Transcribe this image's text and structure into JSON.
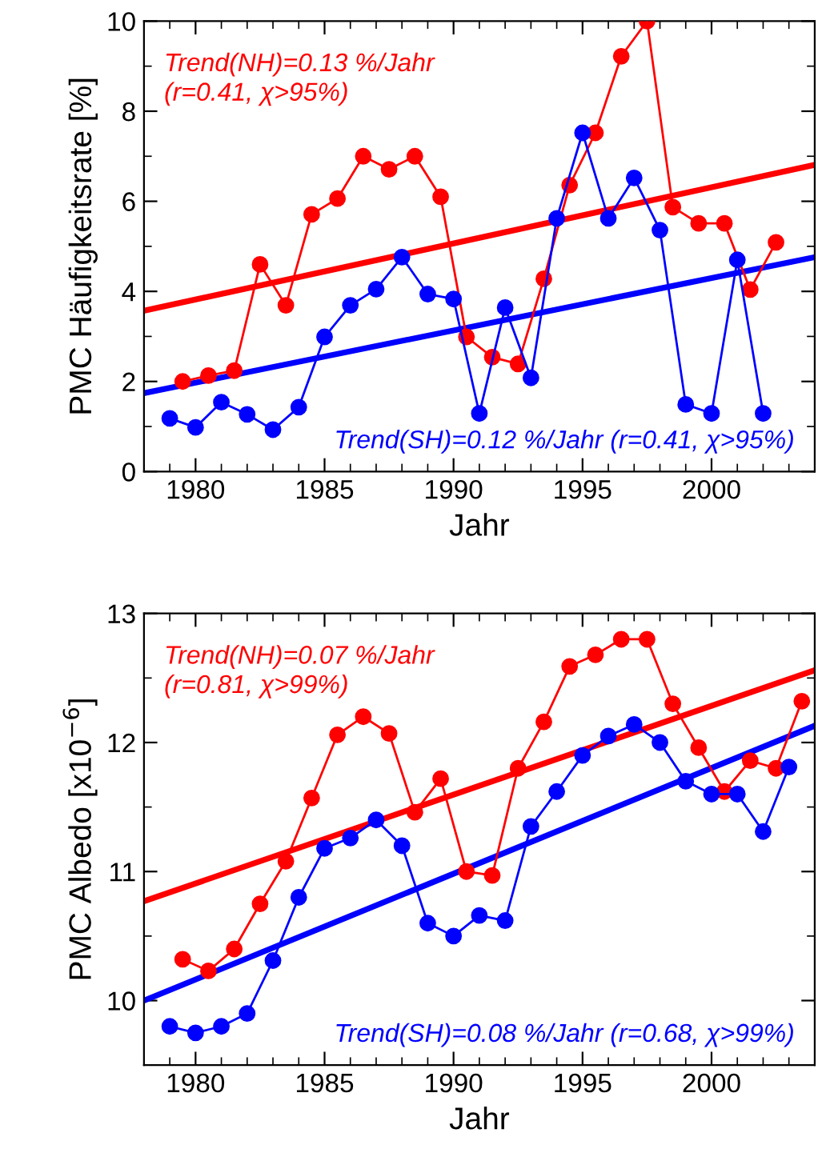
{
  "chart_data": [
    {
      "type": "line",
      "xlabel": "Jahr",
      "ylabel": "PMC Häufigkeitsrate [%]",
      "xlim": [
        1978,
        2004
      ],
      "xticks": [
        1980,
        1985,
        1990,
        1995,
        2000
      ],
      "ylim": [
        0,
        10
      ],
      "yticks": [
        0,
        2,
        4,
        6,
        8,
        10
      ],
      "grid": false,
      "legend": false,
      "marker": "circle",
      "annotations": [
        "Trend(NH)=0.13 %/Jahr\n(r=0.41, χ>95%)",
        "Trend(SH)=0.12 %/Jahr (r=0.41, χ>95%)"
      ],
      "series": [
        {
          "color": "#ff0000",
          "x": [
            1979.5,
            1980.5,
            1981.5,
            1982.5,
            1983.5,
            1984.5,
            1985.5,
            1986.5,
            1987.5,
            1988.5,
            1989.5,
            1990.5,
            1991.5,
            1992.5,
            1993.5,
            1994.5,
            1995.5,
            1996.5,
            1997.5,
            1998.5,
            1999.5,
            2000.5,
            2001.5,
            2002.5
          ],
          "values": [
            2.0,
            2.13,
            2.24,
            4.6,
            3.69,
            5.71,
            6.06,
            7.0,
            6.71,
            7.0,
            6.1,
            2.99,
            2.54,
            2.39,
            4.28,
            6.36,
            7.52,
            9.22,
            10.0,
            5.87,
            5.51,
            5.51,
            4.04,
            5.09
          ]
        },
        {
          "color": "#0000ff",
          "x": [
            1979,
            1980,
            1981,
            1982,
            1983,
            1984,
            1985,
            1986,
            1987,
            1988,
            1989,
            1990,
            1991,
            1992,
            1993,
            1994,
            1995,
            1996,
            1997,
            1998,
            1999,
            2000,
            2001,
            2002
          ],
          "values": [
            1.18,
            0.98,
            1.54,
            1.27,
            0.93,
            1.43,
            2.99,
            3.69,
            4.05,
            4.76,
            3.94,
            3.83,
            1.29,
            3.64,
            2.08,
            5.62,
            7.52,
            5.62,
            6.52,
            5.36,
            1.49,
            1.29,
            4.7,
            1.29
          ]
        },
        {
          "type": "line",
          "marker": "none",
          "color": "#ff0000",
          "x": [
            1978,
            2004
          ],
          "values": [
            3.57,
            6.81
          ]
        },
        {
          "type": "line",
          "marker": "none",
          "color": "#0000ff",
          "x": [
            1978,
            2004
          ],
          "values": [
            1.74,
            4.76
          ]
        }
      ]
    },
    {
      "type": "line",
      "xlabel": "Jahr",
      "ylabel": "PMC Albedo [x10$^{−6}$]",
      "xlim": [
        1978,
        2004
      ],
      "xticks": [
        1980,
        1985,
        1990,
        1995,
        2000
      ],
      "ylim": [
        9.5,
        13
      ],
      "yticks": [
        10,
        11,
        12,
        13
      ],
      "grid": false,
      "legend": false,
      "marker": "circle",
      "annotations": [
        "Trend(NH)=0.07 %/Jahr\n(r=0.81, χ>99%)",
        "Trend(SH)=0.08 %/Jahr (r=0.68, χ>99%)"
      ],
      "series": [
        {
          "color": "#ff0000",
          "x": [
            1979.5,
            1980.5,
            1981.5,
            1982.5,
            1983.5,
            1984.5,
            1985.5,
            1986.5,
            1987.5,
            1988.5,
            1989.5,
            1990.5,
            1991.5,
            1992.5,
            1993.5,
            1994.5,
            1995.5,
            1996.5,
            1997.5,
            1998.5,
            1999.5,
            2000.5,
            2001.5,
            2002.5,
            2003.5
          ],
          "values": [
            10.32,
            10.23,
            10.4,
            10.75,
            11.08,
            11.57,
            12.06,
            12.2,
            12.07,
            11.46,
            11.72,
            11.0,
            10.97,
            11.8,
            12.16,
            12.59,
            12.68,
            12.8,
            12.8,
            12.3,
            11.96,
            11.62,
            11.86,
            11.8,
            12.32
          ]
        },
        {
          "color": "#0000ff",
          "x": [
            1979,
            1980,
            1981,
            1982,
            1983,
            1984,
            1985,
            1986,
            1987,
            1988,
            1989,
            1990,
            1991,
            1992,
            1993,
            1994,
            1995,
            1996,
            1997,
            1998,
            1999,
            2000,
            2001,
            2002,
            2003
          ],
          "values": [
            9.8,
            9.75,
            9.8,
            9.9,
            10.31,
            10.8,
            11.18,
            11.26,
            11.4,
            11.2,
            10.6,
            10.5,
            10.66,
            10.62,
            11.35,
            11.62,
            11.9,
            12.05,
            12.14,
            12.0,
            11.7,
            11.6,
            11.6,
            11.31,
            11.81
          ]
        },
        {
          "type": "line",
          "marker": "none",
          "color": "#ff0000",
          "x": [
            1978,
            2004
          ],
          "values": [
            10.77,
            12.56
          ]
        },
        {
          "type": "line",
          "marker": "none",
          "color": "#0000ff",
          "x": [
            1978,
            2004
          ],
          "values": [
            10.0,
            12.13
          ]
        }
      ]
    }
  ]
}
